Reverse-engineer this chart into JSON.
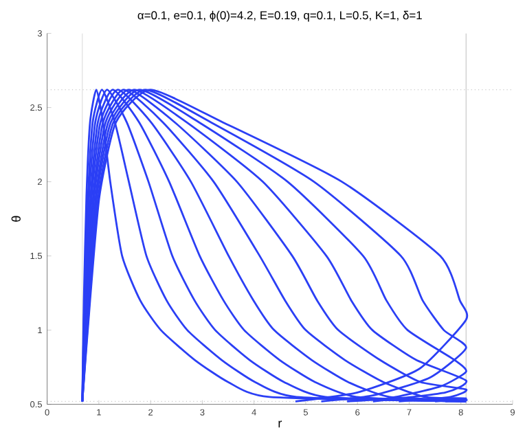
{
  "chart_data": {
    "type": "line",
    "title": "α=0.1, e=0.1, ϕ(0)=4.2, E=0.19, q=0.1, L=0.5, K=1, δ=1",
    "xlabel": "r",
    "ylabel": "θ",
    "xlim": [
      0,
      9
    ],
    "ylim": [
      0.5,
      3
    ],
    "xticks": [
      0,
      1,
      2,
      3,
      4,
      5,
      6,
      7,
      8,
      9
    ],
    "yticks": [
      0.5,
      1,
      1.5,
      2,
      2.5,
      3
    ],
    "marker": "none",
    "line_style": "solid",
    "ref_lines": [
      {
        "axis": "y",
        "value": 2.62,
        "color": "#c8c8c8",
        "line_style": "dotted"
      },
      {
        "axis": "y",
        "value": 0.52,
        "color": "#c8c8c8",
        "line_style": "dotted"
      },
      {
        "axis": "x",
        "value": 8.1,
        "color": "#c8c8c8",
        "line_style": "solid"
      },
      {
        "axis": "x",
        "value": 0.68,
        "color": "#e0e0e0",
        "line_style": "solid"
      }
    ],
    "series": [
      {
        "color": "#2b3ff5",
        "x": [
          0.68,
          0.71,
          0.76,
          0.83,
          0.95,
          1.08,
          1.22,
          1.45,
          1.8,
          2.2,
          2.85,
          3.5,
          4.3,
          8.1
        ],
        "values": [
          0.52,
          1.2,
          1.9,
          2.4,
          2.62,
          2.4,
          2.0,
          1.5,
          1.2,
          1.0,
          0.8,
          0.65,
          0.55,
          0.52
        ]
      },
      {
        "color": "#2b3ff5",
        "x": [
          0.68,
          0.72,
          0.79,
          0.88,
          1.06,
          1.31,
          1.58,
          1.92,
          2.31,
          2.71,
          3.37,
          4.02,
          4.82,
          8.1
        ],
        "values": [
          0.52,
          1.2,
          1.9,
          2.4,
          2.62,
          2.4,
          2.0,
          1.5,
          1.2,
          1.0,
          0.8,
          0.65,
          0.55,
          0.52
        ]
      },
      {
        "color": "#2b3ff5",
        "x": [
          0.68,
          0.73,
          0.81,
          0.93,
          1.16,
          1.54,
          1.96,
          2.42,
          2.85,
          3.25,
          3.91,
          4.58,
          5.38,
          8.1
        ],
        "values": [
          0.52,
          1.2,
          1.9,
          2.4,
          2.62,
          2.4,
          2.0,
          1.5,
          1.2,
          1.0,
          0.8,
          0.65,
          0.55,
          0.52
        ]
      },
      {
        "color": "#2b3ff5",
        "x": [
          0.68,
          0.75,
          0.84,
          0.98,
          1.27,
          1.78,
          2.36,
          2.95,
          3.41,
          3.81,
          4.49,
          5.18,
          5.98,
          8.1
        ],
        "values": [
          0.52,
          1.2,
          1.9,
          2.4,
          2.62,
          2.4,
          2.0,
          1.5,
          1.2,
          1.0,
          0.8,
          0.65,
          0.55,
          0.52
        ]
      },
      {
        "color": "#2b3ff5",
        "x": [
          0.68,
          0.76,
          0.86,
          1.03,
          1.37,
          2.01,
          2.78,
          3.51,
          3.99,
          4.39,
          5.11,
          5.82,
          6.62,
          8.1,
          7.7
        ],
        "values": [
          0.52,
          1.2,
          1.9,
          2.4,
          2.62,
          2.4,
          2.0,
          1.5,
          1.2,
          1.0,
          0.8,
          0.65,
          0.55,
          0.53,
          0.52
        ]
      },
      {
        "color": "#2b3ff5",
        "x": [
          0.68,
          0.77,
          0.89,
          1.08,
          1.48,
          2.24,
          3.22,
          4.11,
          4.6,
          5.0,
          5.75,
          6.5,
          7.3,
          8.1,
          7.5
        ],
        "values": [
          0.52,
          1.2,
          1.9,
          2.4,
          2.62,
          2.4,
          2.0,
          1.5,
          1.2,
          1.0,
          0.8,
          0.65,
          0.55,
          0.54,
          0.52
        ]
      },
      {
        "color": "#2b3ff5",
        "x": [
          0.68,
          0.78,
          0.91,
          1.13,
          1.58,
          2.47,
          3.67,
          4.74,
          5.22,
          5.63,
          6.43,
          7.22,
          8.1,
          7.8,
          6.8
        ],
        "values": [
          0.52,
          1.2,
          1.9,
          2.4,
          2.62,
          2.4,
          2.0,
          1.5,
          1.2,
          1.0,
          0.8,
          0.65,
          0.6,
          0.55,
          0.52
        ]
      },
      {
        "color": "#2b3ff5",
        "x": [
          0.68,
          0.79,
          0.94,
          1.18,
          1.69,
          2.7,
          4.17,
          5.4,
          5.88,
          6.29,
          7.13,
          8.1,
          7.7,
          6.3
        ],
        "values": [
          0.52,
          1.2,
          1.9,
          2.4,
          2.62,
          2.4,
          2.0,
          1.5,
          1.2,
          1.0,
          0.8,
          0.66,
          0.58,
          0.52
        ]
      },
      {
        "color": "#2b3ff5",
        "x": [
          0.68,
          0.81,
          0.96,
          1.23,
          1.79,
          2.94,
          4.65,
          6.11,
          6.56,
          6.97,
          7.87,
          8.1,
          7.6,
          6.6,
          5.8
        ],
        "values": [
          0.52,
          1.2,
          1.9,
          2.4,
          2.62,
          2.4,
          2.0,
          1.5,
          1.2,
          1.0,
          0.8,
          0.72,
          0.62,
          0.54,
          0.52
        ]
      },
      {
        "color": "#2b3ff5",
        "x": [
          0.68,
          0.82,
          0.99,
          1.28,
          1.9,
          3.17,
          5.16,
          6.84,
          7.26,
          7.67,
          8.1,
          7.4,
          6.3,
          5.3
        ],
        "values": [
          0.52,
          1.2,
          1.9,
          2.4,
          2.62,
          2.4,
          2.0,
          1.5,
          1.2,
          1.0,
          0.88,
          0.68,
          0.56,
          0.52
        ]
      },
      {
        "color": "#2b3ff5",
        "x": [
          0.68,
          0.83,
          1.01,
          1.33,
          2.0,
          3.4,
          5.7,
          7.6,
          7.98,
          8.1,
          7.2,
          6.0,
          4.8
        ],
        "values": [
          0.52,
          1.2,
          1.9,
          2.4,
          2.62,
          2.4,
          2.0,
          1.5,
          1.2,
          1.07,
          0.74,
          0.58,
          0.52
        ]
      }
    ]
  }
}
